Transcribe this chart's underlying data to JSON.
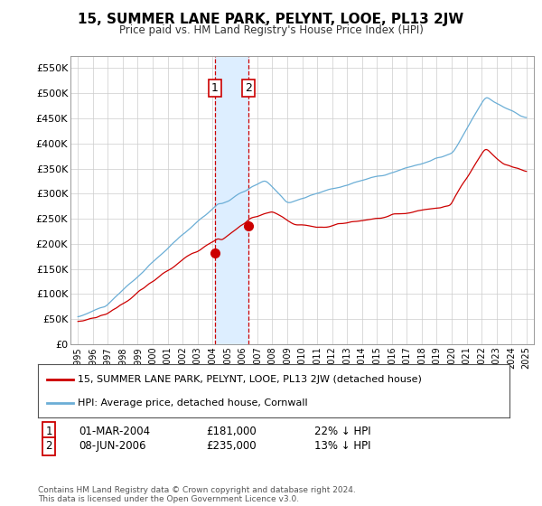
{
  "title": "15, SUMMER LANE PARK, PELYNT, LOOE, PL13 2JW",
  "subtitle": "Price paid vs. HM Land Registry's House Price Index (HPI)",
  "hpi_color": "#6baed6",
  "price_color": "#cc0000",
  "ylim": [
    0,
    575000
  ],
  "yticks": [
    0,
    50000,
    100000,
    150000,
    200000,
    250000,
    300000,
    350000,
    400000,
    450000,
    500000,
    550000
  ],
  "ytick_labels": [
    "£0",
    "£50K",
    "£100K",
    "£150K",
    "£200K",
    "£250K",
    "£300K",
    "£350K",
    "£400K",
    "£450K",
    "£500K",
    "£550K"
  ],
  "legend_house_label": "15, SUMMER LANE PARK, PELYNT, LOOE, PL13 2JW (detached house)",
  "legend_hpi_label": "HPI: Average price, detached house, Cornwall",
  "transaction1_date": "01-MAR-2004",
  "transaction1_price": "£181,000",
  "transaction1_hpi": "22% ↓ HPI",
  "transaction2_date": "08-JUN-2006",
  "transaction2_price": "£235,000",
  "transaction2_hpi": "13% ↓ HPI",
  "footer": "Contains HM Land Registry data © Crown copyright and database right 2024.\nThis data is licensed under the Open Government Licence v3.0.",
  "background_color": "#ffffff",
  "grid_color": "#cccccc",
  "span_color": "#ddeeff",
  "t1": 2004.17,
  "t2": 2006.42,
  "p1": 181000,
  "p2": 235000
}
